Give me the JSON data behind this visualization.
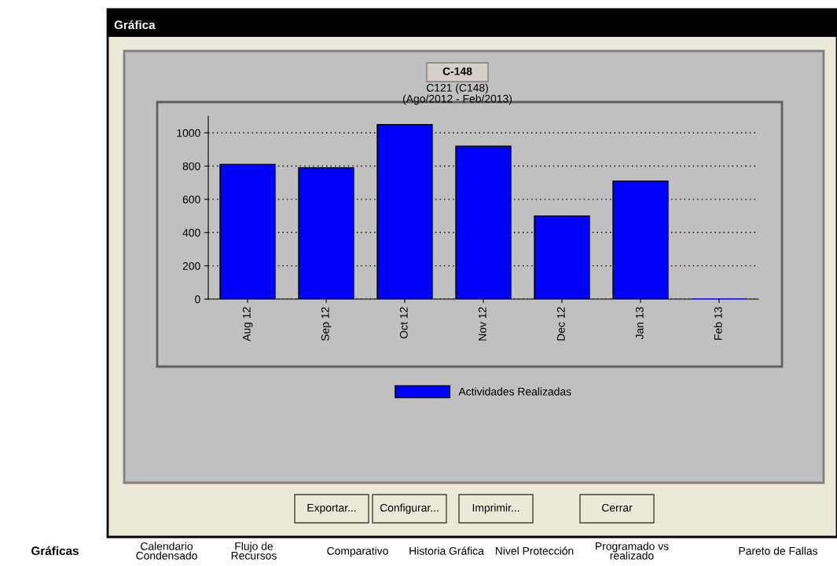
{
  "chart_data": {
    "type": "bar",
    "title": "C-148",
    "subtitle": "C121 (C148)\n(Ago/2012 - Feb/2013)",
    "categories": [
      "Aug 12",
      "Sep 12",
      "Oct 12",
      "Nov 12",
      "Dec 12",
      "Jan 13",
      "Feb 13"
    ],
    "series": [
      {
        "name": "Actividades Realizadas",
        "color": "#0000ff",
        "values": [
          810,
          790,
          1050,
          920,
          500,
          710,
          0
        ]
      }
    ],
    "ylim": [
      0,
      1100
    ],
    "yticks": [
      0,
      200,
      400,
      600,
      800,
      1000
    ],
    "grid": "y",
    "legend": "bottom",
    "annotations": [
      "Gráfica",
      "Exportar...",
      "Configurar...",
      "Imprimir...",
      "Cerrar",
      "Gráficas",
      "Calendario\nCondensado",
      "Flujo de\nRecursos",
      "Comparativo",
      "Historia Gráfica",
      "Nivel Protección",
      "Programado vs\nrealizado",
      "Pareto de Fallas"
    ]
  }
}
